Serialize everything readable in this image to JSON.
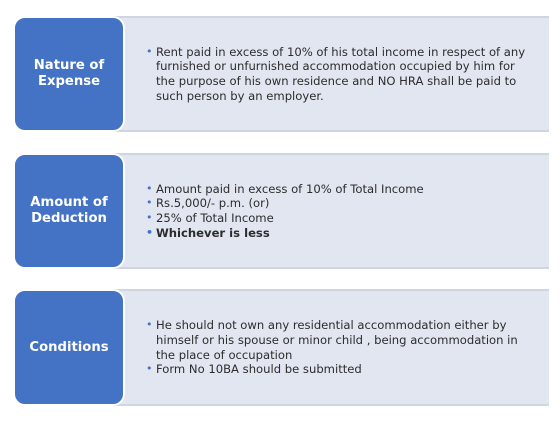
{
  "rows": [
    {
      "label_lines": [
        "Nature of",
        "Expense"
      ],
      "items": [
        {
          "text": "Rent paid in excess of 10% of his total income in respect of any furnished or unfurnished accommodation occupied by him for the purpose of his own residence and NO HRA shall be paid to such person by an employer."
        }
      ]
    },
    {
      "label_lines": [
        "Amount of",
        "Deduction"
      ],
      "items": [
        {
          "text": "Amount paid in excess of 10% of Total Income"
        },
        {
          "text": "Rs.5,000/- p.m. (or)"
        },
        {
          "text": "25% of Total Income"
        },
        {
          "text": "Whichever is less"
        }
      ]
    },
    {
      "label_lines": [
        "Conditions"
      ],
      "items": [
        {
          "text": "He should not own any residential accommodation either by himself or his spouse or minor child , being accommodation in the place of occupation"
        },
        {
          "text": "Form No 10BA should be submitted"
        }
      ]
    }
  ],
  "colors": {
    "label_bg": "#4472c4",
    "panel_bg": "#e2e6f1",
    "bullet": "#4472c4"
  }
}
